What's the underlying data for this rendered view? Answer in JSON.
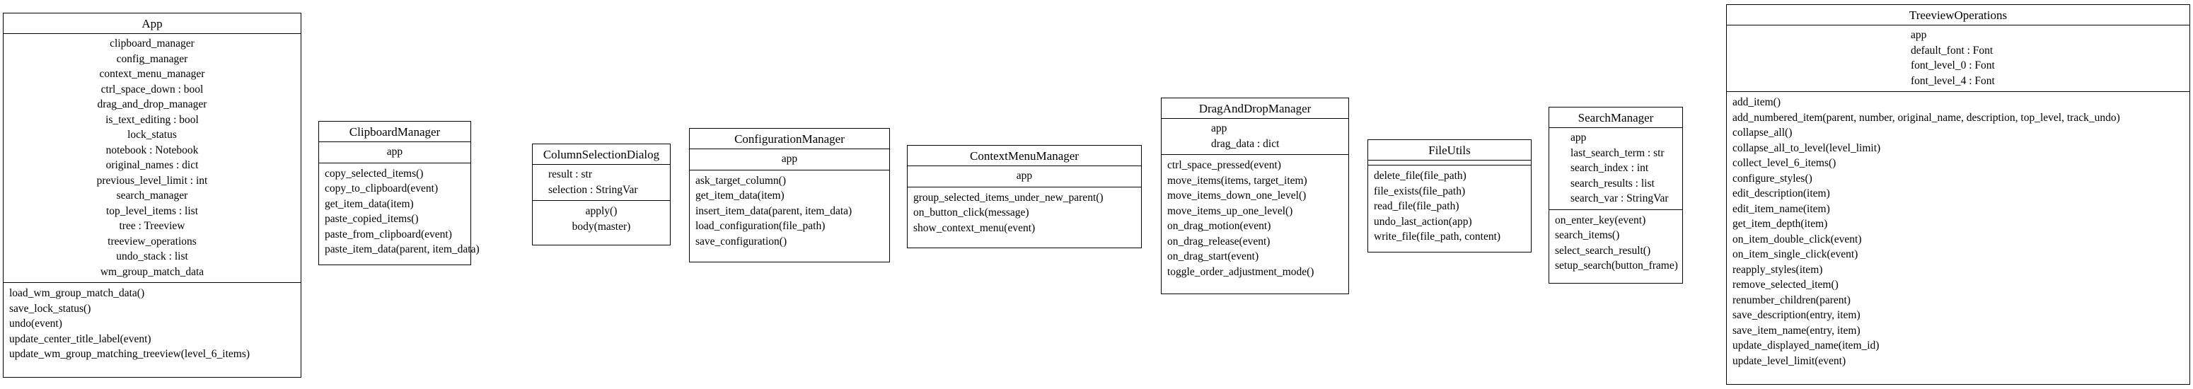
{
  "classes": {
    "app": {
      "name": "App",
      "attributes": [
        "clipboard_manager",
        "config_manager",
        "context_menu_manager",
        "ctrl_space_down : bool",
        "drag_and_drop_manager",
        "is_text_editing : bool",
        "lock_status",
        "notebook : Notebook",
        "original_names : dict",
        "previous_level_limit : int",
        "search_manager",
        "top_level_items : list",
        "tree : Treeview",
        "treeview_operations",
        "undo_stack : list",
        "wm_group_match_data"
      ],
      "operations": [
        "load_wm_group_match_data()",
        "save_lock_status()",
        "undo(event)",
        "update_center_title_label(event)",
        "update_wm_group_matching_treeview(level_6_items)"
      ]
    },
    "clipboard_manager": {
      "name": "ClipboardManager",
      "attributes": [
        "app"
      ],
      "operations": [
        "copy_selected_items()",
        "copy_to_clipboard(event)",
        "get_item_data(item)",
        "paste_copied_items()",
        "paste_from_clipboard(event)",
        "paste_item_data(parent, item_data)"
      ]
    },
    "column_selection_dialog": {
      "name": "ColumnSelectionDialog",
      "attributes": [
        "result : str",
        "selection : StringVar"
      ],
      "operations": [
        "apply()",
        "body(master)"
      ]
    },
    "configuration_manager": {
      "name": "ConfigurationManager",
      "attributes": [
        "app"
      ],
      "operations": [
        "ask_target_column()",
        "get_item_data(item)",
        "insert_item_data(parent, item_data)",
        "load_configuration(file_path)",
        "save_configuration()"
      ]
    },
    "context_menu_manager": {
      "name": "ContextMenuManager",
      "attributes": [
        "app"
      ],
      "operations": [
        "group_selected_items_under_new_parent()",
        "on_button_click(message)",
        "show_context_menu(event)"
      ]
    },
    "drag_and_drop_manager": {
      "name": "DragAndDropManager",
      "attributes": [
        "app",
        "drag_data : dict"
      ],
      "operations": [
        "ctrl_space_pressed(event)",
        "move_items(items, target_item)",
        "move_items_down_one_level()",
        "move_items_up_one_level()",
        "on_drag_motion(event)",
        "on_drag_release(event)",
        "on_drag_start(event)",
        "toggle_order_adjustment_mode()"
      ]
    },
    "file_utils": {
      "name": "FileUtils",
      "attributes": [],
      "operations": [
        "delete_file(file_path)",
        "file_exists(file_path)",
        "read_file(file_path)",
        "undo_last_action(app)",
        "write_file(file_path, content)"
      ]
    },
    "search_manager": {
      "name": "SearchManager",
      "attributes": [
        "app",
        "last_search_term : str",
        "search_index : int",
        "search_results : list",
        "search_var : StringVar"
      ],
      "operations": [
        "on_enter_key(event)",
        "search_items()",
        "select_search_result()",
        "setup_search(button_frame)"
      ]
    },
    "treeview_operations": {
      "name": "TreeviewOperations",
      "attributes": [
        "app",
        "default_font : Font",
        "font_level_0 : Font",
        "font_level_4 : Font"
      ],
      "operations": [
        "add_item()",
        "add_numbered_item(parent, number, original_name, description, top_level, track_undo)",
        "collapse_all()",
        "collapse_all_to_level(level_limit)",
        "collect_level_6_items()",
        "configure_styles()",
        "edit_description(item)",
        "edit_item_name(item)",
        "get_item_depth(item)",
        "on_item_double_click(event)",
        "on_item_single_click(event)",
        "reapply_styles(item)",
        "remove_selected_item()",
        "renumber_children(parent)",
        "save_description(entry, item)",
        "save_item_name(entry, item)",
        "update_displayed_name(item_id)",
        "update_level_limit(event)"
      ]
    }
  }
}
